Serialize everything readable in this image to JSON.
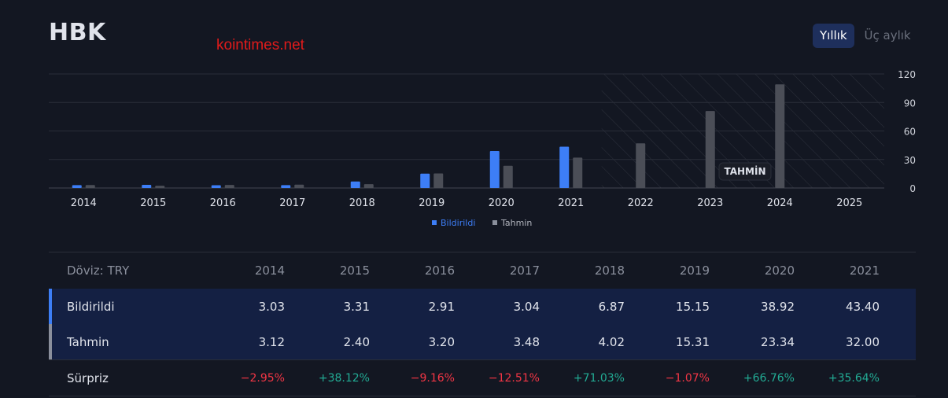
{
  "header": {
    "title": "HBK",
    "watermark": "kointimes.net"
  },
  "toggle": {
    "annual_label": "Yıllık",
    "quarterly_label": "Üç aylık",
    "selected": "annual"
  },
  "chart_data": {
    "type": "bar",
    "categories": [
      "2014",
      "2015",
      "2016",
      "2017",
      "2018",
      "2019",
      "2020",
      "2021",
      "2022",
      "2023",
      "2024",
      "2025"
    ],
    "series": [
      {
        "name": "Bildirildi",
        "color": "#3d7ef6",
        "values": [
          3.03,
          3.31,
          2.91,
          3.04,
          6.87,
          15.15,
          38.92,
          43.4,
          null,
          null,
          null,
          null
        ]
      },
      {
        "name": "Tahmin",
        "color": "#4b4e57",
        "values": [
          3.12,
          2.4,
          3.2,
          3.48,
          4.02,
          15.31,
          23.34,
          32.0,
          47,
          81,
          109,
          null
        ]
      }
    ],
    "y_ticks": [
      0,
      30,
      60,
      90,
      120
    ],
    "ylim": [
      0,
      120
    ],
    "forecast_from": "2022",
    "forecast_label": "TAHMİN",
    "legend_position": "bottom-center",
    "grid": true
  },
  "table": {
    "currency_label": "Döviz: TRY",
    "years": [
      "2014",
      "2015",
      "2016",
      "2017",
      "2018",
      "2019",
      "2020",
      "2021"
    ],
    "rows": [
      {
        "label": "Bildirildi",
        "marker": "#3d7ef6",
        "values": [
          "3.03",
          "3.31",
          "2.91",
          "3.04",
          "6.87",
          "15.15",
          "38.92",
          "43.40"
        ]
      },
      {
        "label": "Tahmin",
        "marker": "#8a8f9c",
        "values": [
          "3.12",
          "2.40",
          "3.20",
          "3.48",
          "4.02",
          "15.31",
          "23.34",
          "32.00"
        ]
      }
    ],
    "surprise": {
      "label": "Sürpriz",
      "values": [
        "−2.95%",
        "+38.12%",
        "−9.16%",
        "−12.51%",
        "+71.03%",
        "−1.07%",
        "+66.76%",
        "+35.64%"
      ],
      "signs": [
        "neg",
        "pos",
        "neg",
        "neg",
        "pos",
        "neg",
        "pos",
        "pos"
      ]
    }
  }
}
